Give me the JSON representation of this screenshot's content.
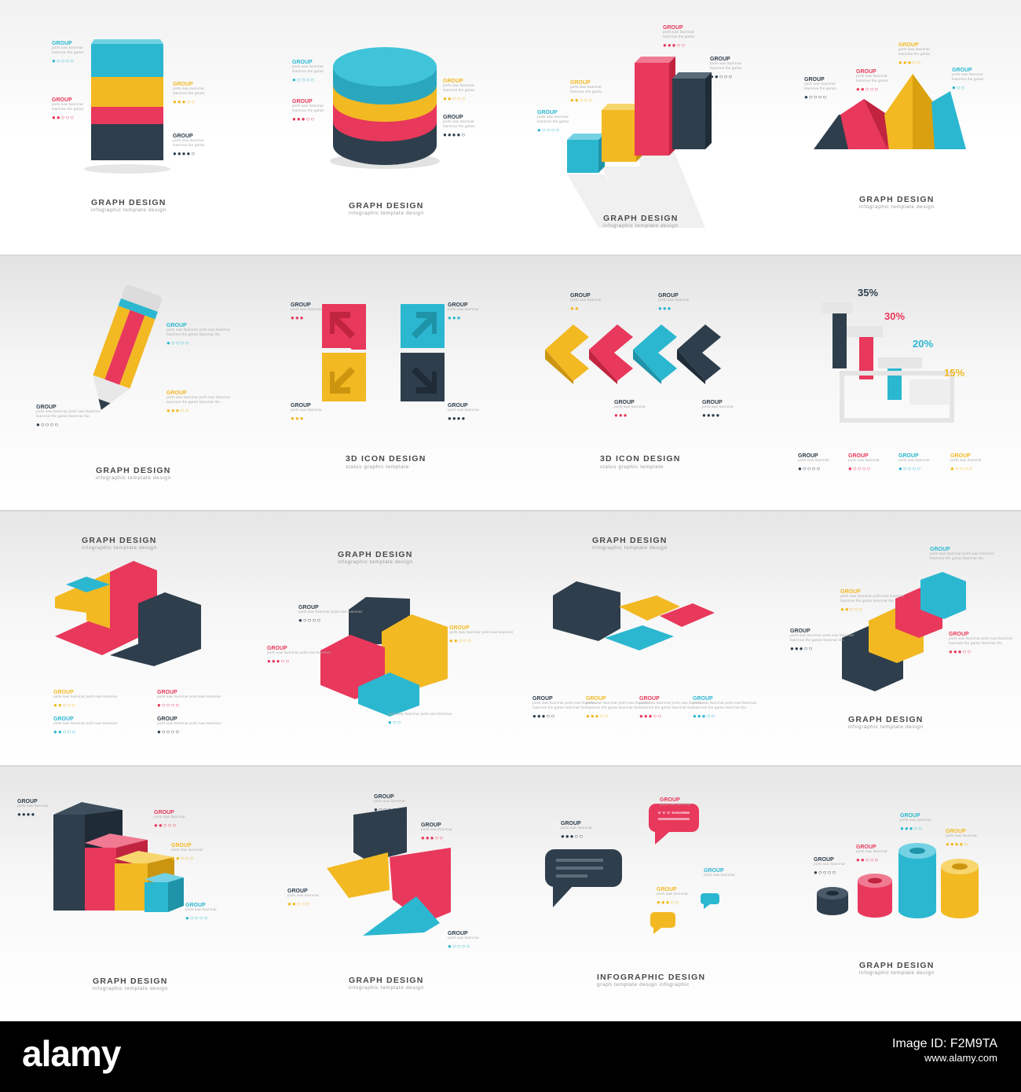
{
  "colors": {
    "teal": "#2bb7d0",
    "yellow": "#f2b923",
    "red": "#e8385b",
    "dark": "#2e3e4c"
  },
  "label": {
    "group": "GROUP",
    "desc_a": "porls saw lsammar",
    "desc_b": "lsammar the gartar.",
    "desc_c": "porls saw lsammar porls saw lsammar",
    "desc_d": "lsammar the gartar lsammar the."
  },
  "captions": {
    "graph": "GRAPH DESIGN",
    "graph_sub": "infographic template design",
    "icon": "3D ICON DESIGN",
    "icon_sub": "status graphic template",
    "info": "INFOGRAPHIC DESIGN",
    "info_sub": "graph template design infographic"
  },
  "percents": [
    "35%",
    "30%",
    "20%",
    "15%"
  ],
  "footer": {
    "logo": "alamy",
    "image_id": "Image ID: F2M9TA",
    "site": "www.alamy.com"
  }
}
